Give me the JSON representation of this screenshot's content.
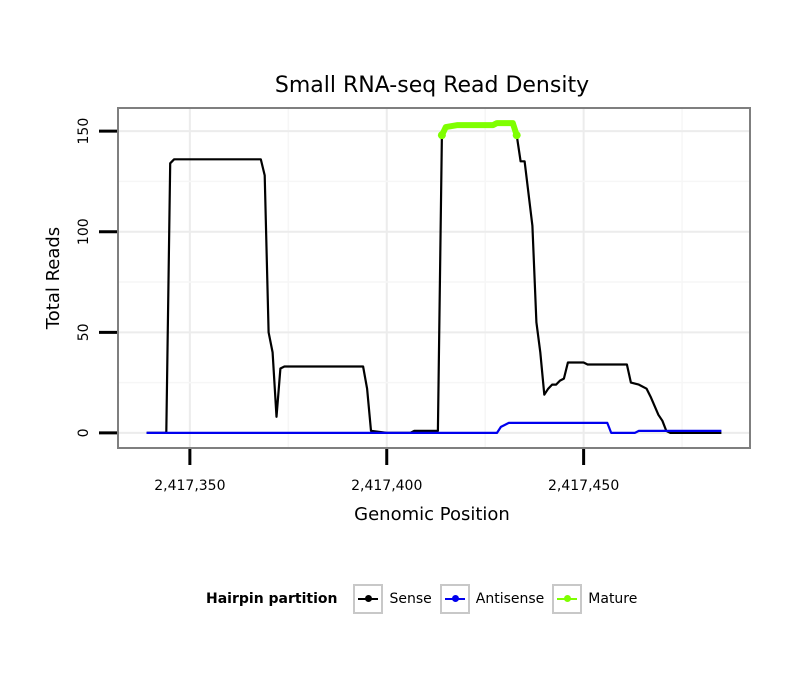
{
  "chart_data": {
    "type": "line",
    "title": "Small RNA-seq Read Density",
    "xlabel": "Genomic Position",
    "ylabel": "Total Reads",
    "xlim": [
      2417332,
      2417492
    ],
    "ylim": [
      -7,
      161
    ],
    "xticks": [
      2417350,
      2417400,
      2417450
    ],
    "xtick_labels": [
      "2,417,350",
      "2,417,400",
      "2,417,450"
    ],
    "yticks": [
      0,
      50,
      100,
      150
    ],
    "ytick_labels": [
      "0",
      "50",
      "100",
      "150"
    ],
    "grid": true,
    "legend_position": "bottom",
    "legend_title": "Hairpin partition",
    "series": [
      {
        "name": "Sense",
        "color": "#000000",
        "points": [
          [
            2417339,
            0
          ],
          [
            2417344,
            0
          ],
          [
            2417345,
            134
          ],
          [
            2417346,
            136
          ],
          [
            2417350,
            136
          ],
          [
            2417368,
            136
          ],
          [
            2417369,
            128
          ],
          [
            2417370,
            50
          ],
          [
            2417371,
            40
          ],
          [
            2417372,
            8
          ],
          [
            2417373,
            32
          ],
          [
            2417374,
            33
          ],
          [
            2417380,
            33
          ],
          [
            2417394,
            33
          ],
          [
            2417395,
            22
          ],
          [
            2417396,
            1
          ],
          [
            2417400,
            0
          ],
          [
            2417406,
            0
          ],
          [
            2417407,
            1
          ],
          [
            2417413,
            1
          ],
          [
            2417414,
            148
          ],
          [
            2417415,
            152
          ],
          [
            2417418,
            153
          ],
          [
            2417427,
            153
          ],
          [
            2417428,
            154
          ],
          [
            2417432,
            154
          ],
          [
            2417433,
            148
          ],
          [
            2417434,
            135
          ],
          [
            2417435,
            135
          ],
          [
            2417437,
            103
          ],
          [
            2417438,
            55
          ],
          [
            2417439,
            40
          ],
          [
            2417440,
            19
          ],
          [
            2417441,
            22
          ],
          [
            2417442,
            24
          ],
          [
            2417443,
            24
          ],
          [
            2417444,
            26
          ],
          [
            2417445,
            27
          ],
          [
            2417446,
            35
          ],
          [
            2417450,
            35
          ],
          [
            2417451,
            34
          ],
          [
            2417460,
            34
          ],
          [
            2417461,
            34
          ],
          [
            2417462,
            25
          ],
          [
            2417464,
            24
          ],
          [
            2417466,
            22
          ],
          [
            2417467,
            18
          ],
          [
            2417469,
            9
          ],
          [
            2417470,
            6
          ],
          [
            2417471,
            1
          ],
          [
            2417472,
            0
          ],
          [
            2417485,
            0
          ]
        ]
      },
      {
        "name": "Antisense",
        "color": "#0000ee",
        "points": [
          [
            2417339,
            0
          ],
          [
            2417428,
            0
          ],
          [
            2417429,
            3
          ],
          [
            2417430,
            4
          ],
          [
            2417431,
            5
          ],
          [
            2417455,
            5
          ],
          [
            2417456,
            5
          ],
          [
            2417457,
            0
          ],
          [
            2417463,
            0
          ],
          [
            2417464,
            1
          ],
          [
            2417485,
            1
          ]
        ]
      },
      {
        "name": "Mature",
        "color": "#7fff00",
        "points": [
          [
            2417414,
            148
          ],
          [
            2417415,
            152
          ],
          [
            2417418,
            153
          ],
          [
            2417427,
            153
          ],
          [
            2417428,
            154
          ],
          [
            2417432,
            154
          ],
          [
            2417433,
            148
          ]
        ]
      }
    ]
  }
}
